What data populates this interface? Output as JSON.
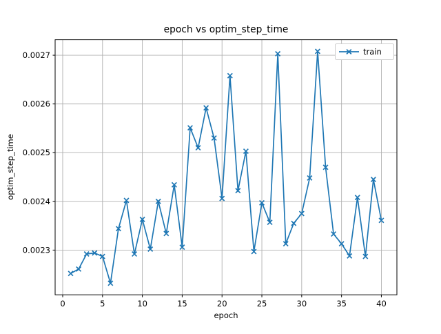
{
  "figure": {
    "background": "#ffffff",
    "colors": {
      "line": "#1f77b4",
      "grid": "#b0b0b0",
      "spine": "#000000",
      "text": "#000000",
      "legend_border": "#cccccc"
    }
  },
  "chart_data": {
    "type": "line",
    "title": "epoch vs optim_step_time",
    "xlabel": "epoch",
    "ylabel": "optim_step_time",
    "marker": "x",
    "grid": true,
    "legend_position": "upper right",
    "legend": [
      "train"
    ],
    "x": [
      1,
      2,
      3,
      4,
      5,
      6,
      7,
      8,
      9,
      10,
      11,
      12,
      13,
      14,
      15,
      16,
      17,
      18,
      19,
      20,
      21,
      22,
      23,
      24,
      25,
      26,
      27,
      28,
      29,
      30,
      31,
      32,
      33,
      34,
      35,
      36,
      37,
      38,
      39,
      40
    ],
    "series": [
      {
        "name": "train",
        "color": "#1f77b4",
        "values": [
          0.002252,
          0.002261,
          0.002292,
          0.002294,
          0.002287,
          0.002232,
          0.002344,
          0.002402,
          0.002292,
          0.002363,
          0.002302,
          0.0024,
          0.002334,
          0.002434,
          0.002306,
          0.002551,
          0.00251,
          0.002592,
          0.00253,
          0.002406,
          0.002658,
          0.002422,
          0.002503,
          0.002297,
          0.002397,
          0.002357,
          0.002703,
          0.002313,
          0.002355,
          0.002375,
          0.002448,
          0.002708,
          0.00247,
          0.002333,
          0.002313,
          0.002288,
          0.002408,
          0.002287,
          0.002445,
          0.002361
        ]
      }
    ],
    "xticks": [
      0,
      5,
      10,
      15,
      20,
      25,
      30,
      35,
      40
    ],
    "yticks": [
      0.0023,
      0.0024,
      0.0025,
      0.0026,
      0.0027
    ],
    "ytick_labels": [
      "0.0023",
      "0.0024",
      "0.0025",
      "0.0026",
      "0.0027"
    ],
    "xlim": [
      -0.95,
      41.95
    ],
    "ylim": [
      0.0022082,
      0.0027318
    ]
  }
}
